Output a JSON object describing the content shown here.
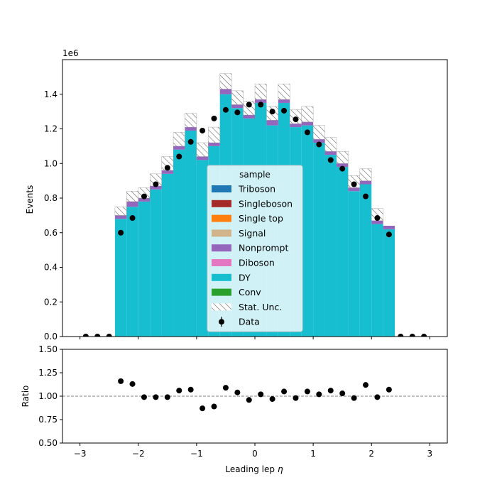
{
  "chart_data": {
    "type": "bar",
    "stacked": true,
    "xlabel": "Leading lep",
    "xlabel_symbol": "η",
    "ylabel": "Events",
    "scale_label": "1e6",
    "xlim": [
      -3.3,
      3.3
    ],
    "ylim": [
      0,
      1.6
    ],
    "x_ticks": [
      "−3",
      "−2",
      "−1",
      "0",
      "1",
      "2",
      "3"
    ],
    "x_tick_values": [
      -3,
      -2,
      -1,
      0,
      1,
      2,
      3
    ],
    "y_ticks": [
      "0.0",
      "0.2",
      "0.4",
      "0.6",
      "0.8",
      "1.0",
      "1.2",
      "1.4"
    ],
    "y_tick_values": [
      0,
      0.2,
      0.4,
      0.6,
      0.8,
      1.0,
      1.2,
      1.4
    ],
    "bin_edges": [
      -2.4,
      -2.2,
      -2.0,
      -1.8,
      -1.6,
      -1.4,
      -1.2,
      -1.0,
      -0.8,
      -0.6,
      -0.4,
      -0.2,
      0.0,
      0.2,
      0.4,
      0.6,
      0.8,
      1.0,
      1.2,
      1.4,
      1.6,
      1.8,
      2.0,
      2.2,
      2.4
    ],
    "series": [
      {
        "name": "DY",
        "color": "#17becf",
        "values": [
          0.68,
          0.75,
          0.78,
          0.85,
          0.94,
          1.08,
          1.19,
          1.02,
          1.1,
          1.4,
          1.32,
          1.26,
          1.35,
          1.22,
          1.35,
          1.21,
          1.22,
          1.12,
          1.05,
          0.98,
          0.84,
          0.88,
          0.65,
          0.62
        ]
      },
      {
        "name": "Nonprompt",
        "color": "#9467bd",
        "values": [
          0.02,
          0.03,
          0.02,
          0.02,
          0.02,
          0.02,
          0.02,
          0.02,
          0.02,
          0.03,
          0.02,
          0.02,
          0.02,
          0.03,
          0.02,
          0.02,
          0.02,
          0.02,
          0.02,
          0.02,
          0.02,
          0.02,
          0.02,
          0.02
        ]
      }
    ],
    "stat_unc": [
      0.05,
      0.06,
      0.06,
      0.07,
      0.08,
      0.08,
      0.08,
      0.08,
      0.09,
      0.09,
      0.08,
      0.08,
      0.09,
      0.08,
      0.09,
      0.08,
      0.09,
      0.08,
      0.08,
      0.07,
      0.07,
      0.07,
      0.07,
      0.0
    ],
    "data_points": {
      "x": [
        -2.9,
        -2.7,
        -2.5,
        -2.3,
        -2.1,
        -1.9,
        -1.7,
        -1.5,
        -1.3,
        -1.1,
        -0.9,
        -0.7,
        -0.5,
        -0.3,
        -0.1,
        0.1,
        0.3,
        0.5,
        0.7,
        0.9,
        1.1,
        1.3,
        1.5,
        1.7,
        1.9,
        2.1,
        2.3,
        2.5,
        2.7,
        2.9
      ],
      "y": [
        0,
        0,
        0,
        0.6,
        0.685,
        0.81,
        0.88,
        0.975,
        1.04,
        1.125,
        1.19,
        1.26,
        1.31,
        1.295,
        1.34,
        1.34,
        1.3,
        1.305,
        1.255,
        1.18,
        1.11,
        1.02,
        0.97,
        0.88,
        0.81,
        0.685,
        0.59,
        0,
        0,
        0
      ]
    },
    "legend": {
      "title": "sample",
      "placement": "center",
      "entries": [
        {
          "label": "Triboson",
          "color": "#1f77b4",
          "kind": "patch"
        },
        {
          "label": "Singleboson",
          "color": "#a52a2a",
          "kind": "patch"
        },
        {
          "label": "Single top",
          "color": "#ff7f0e",
          "kind": "patch"
        },
        {
          "label": "Signal",
          "color": "#d2b48c",
          "kind": "patch"
        },
        {
          "label": "Nonprompt",
          "color": "#9467bd",
          "kind": "patch"
        },
        {
          "label": "Diboson",
          "color": "#e377c2",
          "kind": "patch"
        },
        {
          "label": "DY",
          "color": "#17becf",
          "kind": "patch"
        },
        {
          "label": "Conv",
          "color": "#2ca02c",
          "kind": "patch"
        },
        {
          "label": "Stat. Unc.",
          "color": "#888888",
          "kind": "hatch"
        },
        {
          "label": "Data",
          "color": "#000000",
          "kind": "marker"
        }
      ]
    },
    "ratio": {
      "ylabel": "Ratio",
      "ylim": [
        0.5,
        1.5
      ],
      "y_ticks": [
        "0.50",
        "0.75",
        "1.00",
        "1.25",
        "1.50"
      ],
      "y_tick_values": [
        0.5,
        0.75,
        1.0,
        1.25,
        1.5
      ],
      "reference": 1.0,
      "x": [
        -2.3,
        -2.1,
        -1.9,
        -1.7,
        -1.5,
        -1.3,
        -1.1,
        -0.9,
        -0.7,
        -0.5,
        -0.3,
        -0.1,
        0.1,
        0.3,
        0.5,
        0.7,
        0.9,
        1.1,
        1.3,
        1.5,
        1.7,
        1.9,
        2.1,
        2.3
      ],
      "y": [
        1.16,
        1.13,
        0.99,
        0.99,
        0.99,
        1.06,
        1.07,
        0.87,
        0.89,
        1.09,
        1.04,
        0.96,
        1.02,
        0.97,
        1.05,
        0.98,
        1.05,
        1.02,
        1.06,
        1.03,
        0.98,
        1.12,
        0.99,
        1.07
      ]
    }
  }
}
